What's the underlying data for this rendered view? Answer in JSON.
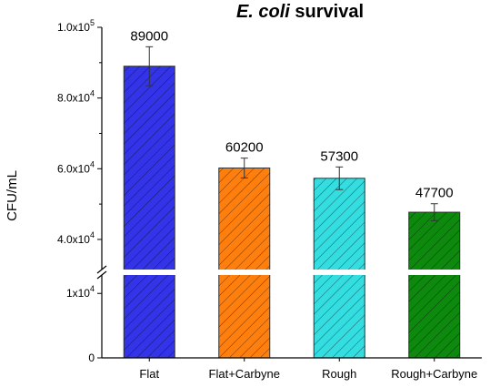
{
  "chart_data": {
    "type": "bar",
    "title_italic": "E. coli",
    "title_rest": "survival",
    "ylabel": "CFU/mL",
    "xlabel": "",
    "categories": [
      "Flat",
      "Flat+Carbyne",
      "Rough",
      "Rough+Carbyne"
    ],
    "values": [
      89000,
      60200,
      57300,
      47700
    ],
    "value_labels": [
      "89000",
      "60200",
      "57300",
      "47700"
    ],
    "errors": [
      5500,
      2800,
      3200,
      2400
    ],
    "colors": [
      "#3333e8",
      "#ff7f0e",
      "#33dde0",
      "#0d8a0d"
    ],
    "hatch": "diagonal",
    "axis_break": true,
    "ylim_lower": [
      0,
      13000
    ],
    "ylim_upper": [
      32000,
      100000
    ],
    "lower_ticks": [
      {
        "value": 0,
        "label": "0",
        "exp": ""
      },
      {
        "value": 10000,
        "label": "1x10",
        "exp": "4"
      }
    ],
    "upper_ticks": [
      {
        "value": 40000,
        "label": "4.0x10",
        "exp": "4"
      },
      {
        "value": 60000,
        "label": "6.0x10",
        "exp": "4"
      },
      {
        "value": 80000,
        "label": "8.0x10",
        "exp": "4"
      },
      {
        "value": 100000,
        "label": "1.0x10",
        "exp": "5"
      }
    ],
    "legend": "none",
    "grid": false
  }
}
